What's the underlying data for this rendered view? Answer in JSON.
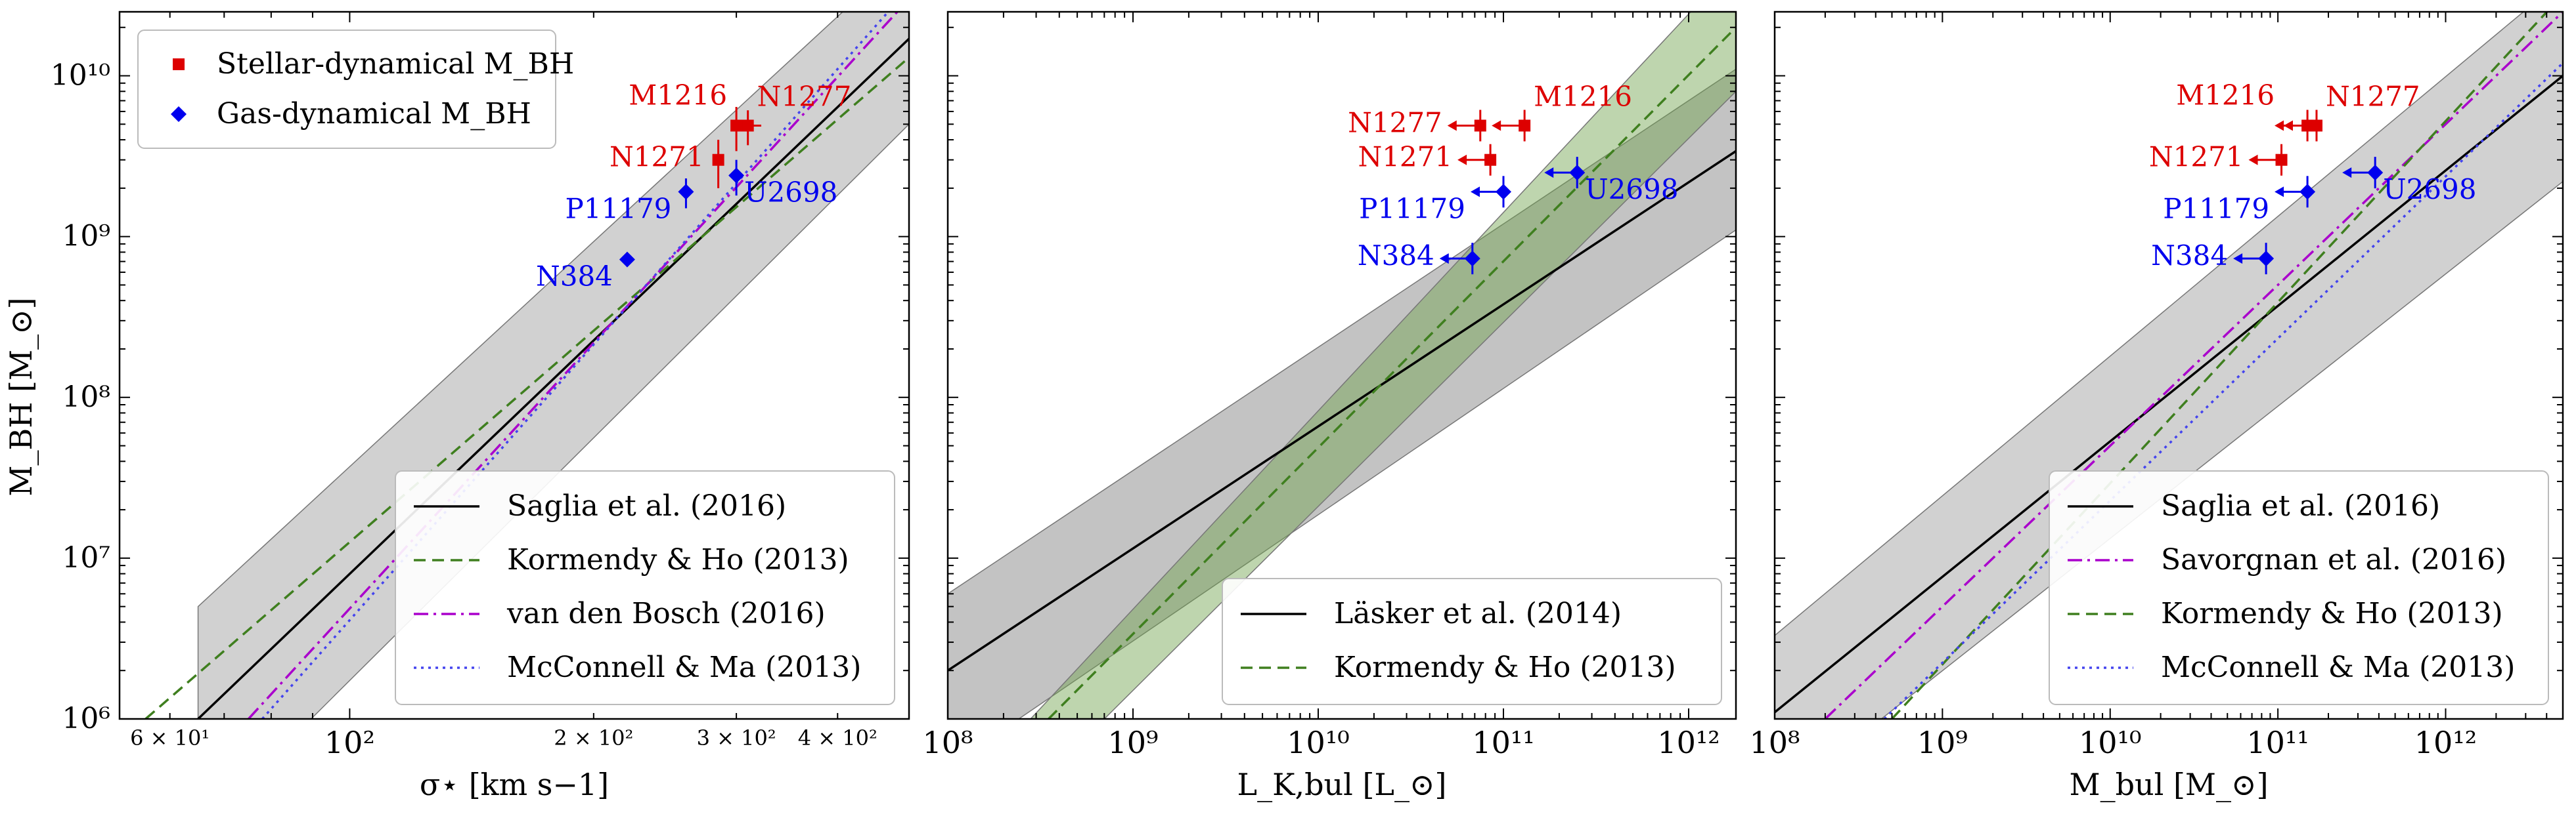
{
  "figure": {
    "ylabel": "M_BH [M_⊙]"
  },
  "panels": [
    {
      "id": "sigma",
      "xlabel": "σ⋆ [km s−1]",
      "x_scale": "log",
      "xlim": [
        52,
        490
      ],
      "ylim": [
        1000000.0,
        25000000000.0
      ],
      "x_ticks": [
        {
          "value": 60,
          "label": "6 × 10¹",
          "major": false
        },
        {
          "value": 100,
          "label": "10²",
          "major": true
        },
        {
          "value": 200,
          "label": "2 × 10²",
          "major": false
        },
        {
          "value": 300,
          "label": "3 × 10²",
          "major": false
        },
        {
          "value": 400,
          "label": "4 × 10²",
          "major": false
        }
      ],
      "top_legend": [
        {
          "label": "Stellar-dynamical M_BH",
          "marker": "square",
          "color": "#dd0000"
        },
        {
          "label": "Gas-dynamical M_BH",
          "marker": "diamond",
          "color": "#0000ee"
        }
      ],
      "legend": [
        {
          "label": "Saglia et al. (2016)",
          "style": "solid",
          "color": "#000000"
        },
        {
          "label": "Kormendy & Ho (2013)",
          "style": "dashed",
          "color": "#3f7f1f"
        },
        {
          "label": "van den Bosch (2016)",
          "style": "dashdot",
          "color": "#aa00cc"
        },
        {
          "label": "McConnell & Ma (2013)",
          "style": "dotted",
          "color": "#4444ee"
        }
      ],
      "lines": [
        {
          "name": "Saglia et al. (2016)",
          "x": [
            65,
            490
          ],
          "y": [
            1000000.0,
            17000000000.0
          ],
          "style": "solid",
          "color": "#000000",
          "band_low": [
            200000.0,
            5000000000.0
          ],
          "band_high": [
            5000000.0,
            60000000000.0
          ]
        },
        {
          "name": "Kormendy & Ho (2013)",
          "x": [
            56,
            490
          ],
          "y": [
            1000000.0,
            13000000000.0
          ],
          "style": "dashed",
          "color": "#3f7f1f"
        },
        {
          "name": "van den Bosch (2016)",
          "x": [
            75,
            490
          ],
          "y": [
            1000000.0,
            30000000000.0
          ],
          "style": "dashdot",
          "color": "#aa00cc"
        },
        {
          "name": "McConnell & Ma (2013)",
          "x": [
            78,
            490
          ],
          "y": [
            1000000.0,
            35000000000.0
          ],
          "style": "dotted",
          "color": "#4444ee"
        }
      ],
      "points": [
        {
          "label": "N1277",
          "x": 310,
          "y": 4900000000.0,
          "type": "stellar",
          "xerr": 12,
          "yerr": [
            1200000000.0,
            1200000000.0
          ],
          "upper": false,
          "label_pos": "upper-right"
        },
        {
          "label": "M1216",
          "x": 300,
          "y": 4900000000.0,
          "type": "stellar",
          "xerr": 0,
          "yerr": [
            1500000000.0,
            1500000000.0
          ],
          "upper": false,
          "label_pos": "upper-left"
        },
        {
          "label": "N1271",
          "x": 285,
          "y": 3000000000.0,
          "type": "stellar",
          "xerr": 0,
          "yerr": [
            1000000000.0,
            1000000000.0
          ],
          "upper": false,
          "label_pos": "left"
        },
        {
          "label": "U2698",
          "x": 300,
          "y": 2400000000.0,
          "type": "gas",
          "xerr": 0,
          "yerr": [
            600000000.0,
            600000000.0
          ],
          "upper": false,
          "label_pos": "lower-right"
        },
        {
          "label": "P11179",
          "x": 260,
          "y": 1900000000.0,
          "type": "gas",
          "xerr": 0,
          "yerr": [
            400000000.0,
            400000000.0
          ],
          "upper": false,
          "label_pos": "lower-left"
        },
        {
          "label": "N384",
          "x": 220,
          "y": 720000000.0,
          "type": "gas",
          "xerr": 0,
          "yerr": [
            0,
            0
          ],
          "upper": false,
          "label_pos": "lower-left"
        }
      ]
    },
    {
      "id": "lum",
      "xlabel": "L_K,bul [L_⊙]",
      "x_scale": "log",
      "xlim": [
        100000000.0,
        1800000000000.0
      ],
      "ylim": [
        1000000.0,
        25000000000.0
      ],
      "x_ticks": [
        {
          "value": 100000000.0,
          "label": "10⁸",
          "major": true
        },
        {
          "value": 1000000000.0,
          "label": "10⁹",
          "major": true
        },
        {
          "value": 10000000000.0,
          "label": "10¹⁰",
          "major": true
        },
        {
          "value": 100000000000.0,
          "label": "10¹¹",
          "major": true
        },
        {
          "value": 1000000000000.0,
          "label": "10¹²",
          "major": true
        }
      ],
      "legend": [
        {
          "label": "Läsker et al. (2014)",
          "style": "solid",
          "color": "#000000"
        },
        {
          "label": "Kormendy & Ho (2013)",
          "style": "dashed",
          "color": "#3f7f1f"
        }
      ],
      "lines": [
        {
          "name": "Läsker et al. (2014)",
          "x": [
            100000000.0,
            1800000000000.0
          ],
          "y": [
            2000000.0,
            3400000000.0
          ],
          "style": "solid",
          "color": "#000000",
          "band_low": [
            500000.0,
            1100000000.0
          ],
          "band_high": [
            6000000.0,
            11000000000.0
          ],
          "band_color": "#7a7a7a"
        },
        {
          "name": "Kormendy & Ho (2013)",
          "x": [
            350000000.0,
            1800000000000.0
          ],
          "y": [
            1000000.0,
            20000000000.0
          ],
          "style": "dashed",
          "color": "#3f7f1f",
          "band_low": [
            1000000.0,
            8000000000.0
          ],
          "band_high": [
            1000000.0,
            50000000000.0
          ],
          "band_x_low": [
            700000000.0,
            1800000000000.0
          ],
          "band_x_high": [
            280000000.0,
            1800000000000.0
          ],
          "band_color": "#6ea24c"
        }
      ],
      "points": [
        {
          "label": "N1277",
          "x": 75000000000.0,
          "y": 4900000000.0,
          "type": "stellar",
          "upper": true,
          "label_pos": "left"
        },
        {
          "label": "M1216",
          "x": 130000000000.0,
          "y": 4900000000.0,
          "type": "stellar",
          "upper": true,
          "label_pos": "upper-right"
        },
        {
          "label": "N1271",
          "x": 85000000000.0,
          "y": 3000000000.0,
          "type": "stellar",
          "upper": true,
          "label_pos": "left"
        },
        {
          "label": "U2698",
          "x": 250000000000.0,
          "y": 2500000000.0,
          "type": "gas",
          "upper": true,
          "label_pos": "lower-right"
        },
        {
          "label": "P11179",
          "x": 100000000000.0,
          "y": 1900000000.0,
          "type": "gas",
          "upper": true,
          "label_pos": "lower-left"
        },
        {
          "label": "N384",
          "x": 68000000000.0,
          "y": 730000000.0,
          "type": "gas",
          "upper": true,
          "label_pos": "left"
        }
      ]
    },
    {
      "id": "mass",
      "xlabel": "M_bul [M_⊙]",
      "x_scale": "log",
      "xlim": [
        100000000.0,
        5000000000000.0
      ],
      "ylim": [
        1000000.0,
        25000000000.0
      ],
      "x_ticks": [
        {
          "value": 100000000.0,
          "label": "10⁸",
          "major": true
        },
        {
          "value": 1000000000.0,
          "label": "10⁹",
          "major": true
        },
        {
          "value": 10000000000.0,
          "label": "10¹⁰",
          "major": true
        },
        {
          "value": 100000000000.0,
          "label": "10¹¹",
          "major": true
        },
        {
          "value": 1000000000000.0,
          "label": "10¹²",
          "major": true
        }
      ],
      "legend": [
        {
          "label": "Saglia et al. (2016)",
          "style": "solid",
          "color": "#000000"
        },
        {
          "label": "Savorgnan et al. (2016)",
          "style": "dashdot",
          "color": "#aa00cc"
        },
        {
          "label": "Kormendy & Ho (2013)",
          "style": "dashed",
          "color": "#3f7f1f"
        },
        {
          "label": "McConnell & Ma (2013)",
          "style": "dotted",
          "color": "#4444ee"
        }
      ],
      "lines": [
        {
          "name": "Saglia et al. (2016)",
          "x": [
            100000000.0,
            5000000000000.0
          ],
          "y": [
            1100000.0,
            10000000000.0
          ],
          "style": "solid",
          "color": "#000000",
          "band_low": [
            300000.0,
            2200000000.0
          ],
          "band_high": [
            3300000.0,
            40000000000.0
          ]
        },
        {
          "name": "Savorgnan et al. (2016)",
          "x": [
            200000000.0,
            5000000000000.0
          ],
          "y": [
            1000000.0,
            25000000000.0
          ],
          "style": "dashdot",
          "color": "#aa00cc"
        },
        {
          "name": "Kormendy & Ho (2013)",
          "x": [
            500000000.0,
            5000000000000.0
          ],
          "y": [
            1000000.0,
            32000000000.0
          ],
          "style": "dashed",
          "color": "#3f7f1f"
        },
        {
          "name": "McConnell & Ma (2013)",
          "x": [
            450000000.0,
            5000000000000.0
          ],
          "y": [
            1000000.0,
            12000000000.0
          ],
          "style": "dotted",
          "color": "#4444ee"
        }
      ],
      "points": [
        {
          "label": "N1277",
          "x": 170000000000.0,
          "y": 4900000000.0,
          "type": "stellar",
          "upper": true,
          "label_pos": "upper-right"
        },
        {
          "label": "M1216",
          "x": 150000000000.0,
          "y": 4900000000.0,
          "type": "stellar",
          "upper": true,
          "label_pos": "upper-left"
        },
        {
          "label": "N1271",
          "x": 105000000000.0,
          "y": 3000000000.0,
          "type": "stellar",
          "upper": true,
          "label_pos": "left"
        },
        {
          "label": "U2698",
          "x": 380000000000.0,
          "y": 2500000000.0,
          "type": "gas",
          "upper": true,
          "label_pos": "lower-right"
        },
        {
          "label": "P11179",
          "x": 150000000000.0,
          "y": 1900000000.0,
          "type": "gas",
          "upper": true,
          "label_pos": "lower-left"
        },
        {
          "label": "N384",
          "x": 85000000000.0,
          "y": 730000000.0,
          "type": "gas",
          "upper": true,
          "label_pos": "left"
        }
      ]
    }
  ],
  "y_ticks": [
    {
      "value": 1000000.0,
      "label": "10⁶"
    },
    {
      "value": 10000000.0,
      "label": "10⁷"
    },
    {
      "value": 100000000.0,
      "label": "10⁸"
    },
    {
      "value": 1000000000.0,
      "label": "10⁹"
    },
    {
      "value": 10000000000.0,
      "label": "10¹⁰"
    }
  ],
  "colors": {
    "stellar": "#dd0000",
    "gas": "#0000ee",
    "band": "#9a9a9a"
  },
  "chart_data": [
    {
      "type": "scatter",
      "xlabel": "σ⋆ [km s−1]",
      "ylabel": "M_BH [M_⊙]",
      "x_scale": "log",
      "y_scale": "log",
      "xlim": [
        52,
        490
      ],
      "ylim": [
        1000000.0,
        25000000000.0
      ],
      "series": [
        {
          "name": "Stellar-dynamical M_BH",
          "points": [
            {
              "label": "N1277",
              "x": 310,
              "y": 4900000000.0
            },
            {
              "label": "M1216",
              "x": 300,
              "y": 4900000000.0
            },
            {
              "label": "N1271",
              "x": 285,
              "y": 3000000000.0
            }
          ]
        },
        {
          "name": "Gas-dynamical M_BH",
          "points": [
            {
              "label": "U2698",
              "x": 300,
              "y": 2400000000.0
            },
            {
              "label": "P11179",
              "x": 260,
              "y": 1900000000.0
            },
            {
              "label": "N384",
              "x": 220,
              "y": 720000000.0
            }
          ]
        }
      ],
      "relations": [
        "Saglia et al. (2016)",
        "Kormendy & Ho (2013)",
        "van den Bosch (2016)",
        "McConnell & Ma (2013)"
      ]
    },
    {
      "type": "scatter",
      "xlabel": "L_K,bul [L_⊙]",
      "ylabel": "M_BH [M_⊙]",
      "x_scale": "log",
      "y_scale": "log",
      "xlim": [
        100000000.0,
        1800000000000.0
      ],
      "ylim": [
        1000000.0,
        25000000000.0
      ],
      "series": [
        {
          "name": "Stellar-dynamical M_BH",
          "points": [
            {
              "label": "N1277",
              "x": 75000000000.0,
              "y": 4900000000.0
            },
            {
              "label": "M1216",
              "x": 130000000000.0,
              "y": 4900000000.0
            },
            {
              "label": "N1271",
              "x": 85000000000.0,
              "y": 3000000000.0
            }
          ]
        },
        {
          "name": "Gas-dynamical M_BH",
          "points": [
            {
              "label": "U2698",
              "x": 250000000000.0,
              "y": 2500000000.0
            },
            {
              "label": "P11179",
              "x": 100000000000.0,
              "y": 1900000000.0
            },
            {
              "label": "N384",
              "x": 68000000000.0,
              "y": 730000000.0
            }
          ]
        }
      ],
      "relations": [
        "Läsker et al. (2014)",
        "Kormendy & Ho (2013)"
      ]
    },
    {
      "type": "scatter",
      "xlabel": "M_bul [M_⊙]",
      "ylabel": "M_BH [M_⊙]",
      "x_scale": "log",
      "y_scale": "log",
      "xlim": [
        100000000.0,
        5000000000000.0
      ],
      "ylim": [
        1000000.0,
        25000000000.0
      ],
      "series": [
        {
          "name": "Stellar-dynamical M_BH",
          "points": [
            {
              "label": "N1277",
              "x": 170000000000.0,
              "y": 4900000000.0
            },
            {
              "label": "M1216",
              "x": 150000000000.0,
              "y": 4900000000.0
            },
            {
              "label": "N1271",
              "x": 105000000000.0,
              "y": 3000000000.0
            }
          ]
        },
        {
          "name": "Gas-dynamical M_BH",
          "points": [
            {
              "label": "U2698",
              "x": 380000000000.0,
              "y": 2500000000.0
            },
            {
              "label": "P11179",
              "x": 150000000000.0,
              "y": 1900000000.0
            },
            {
              "label": "N384",
              "x": 85000000000.0,
              "y": 730000000.0
            }
          ]
        }
      ],
      "relations": [
        "Saglia et al. (2016)",
        "Savorgnan et al. (2016)",
        "Kormendy & Ho (2013)",
        "McConnell & Ma (2013)"
      ]
    }
  ]
}
